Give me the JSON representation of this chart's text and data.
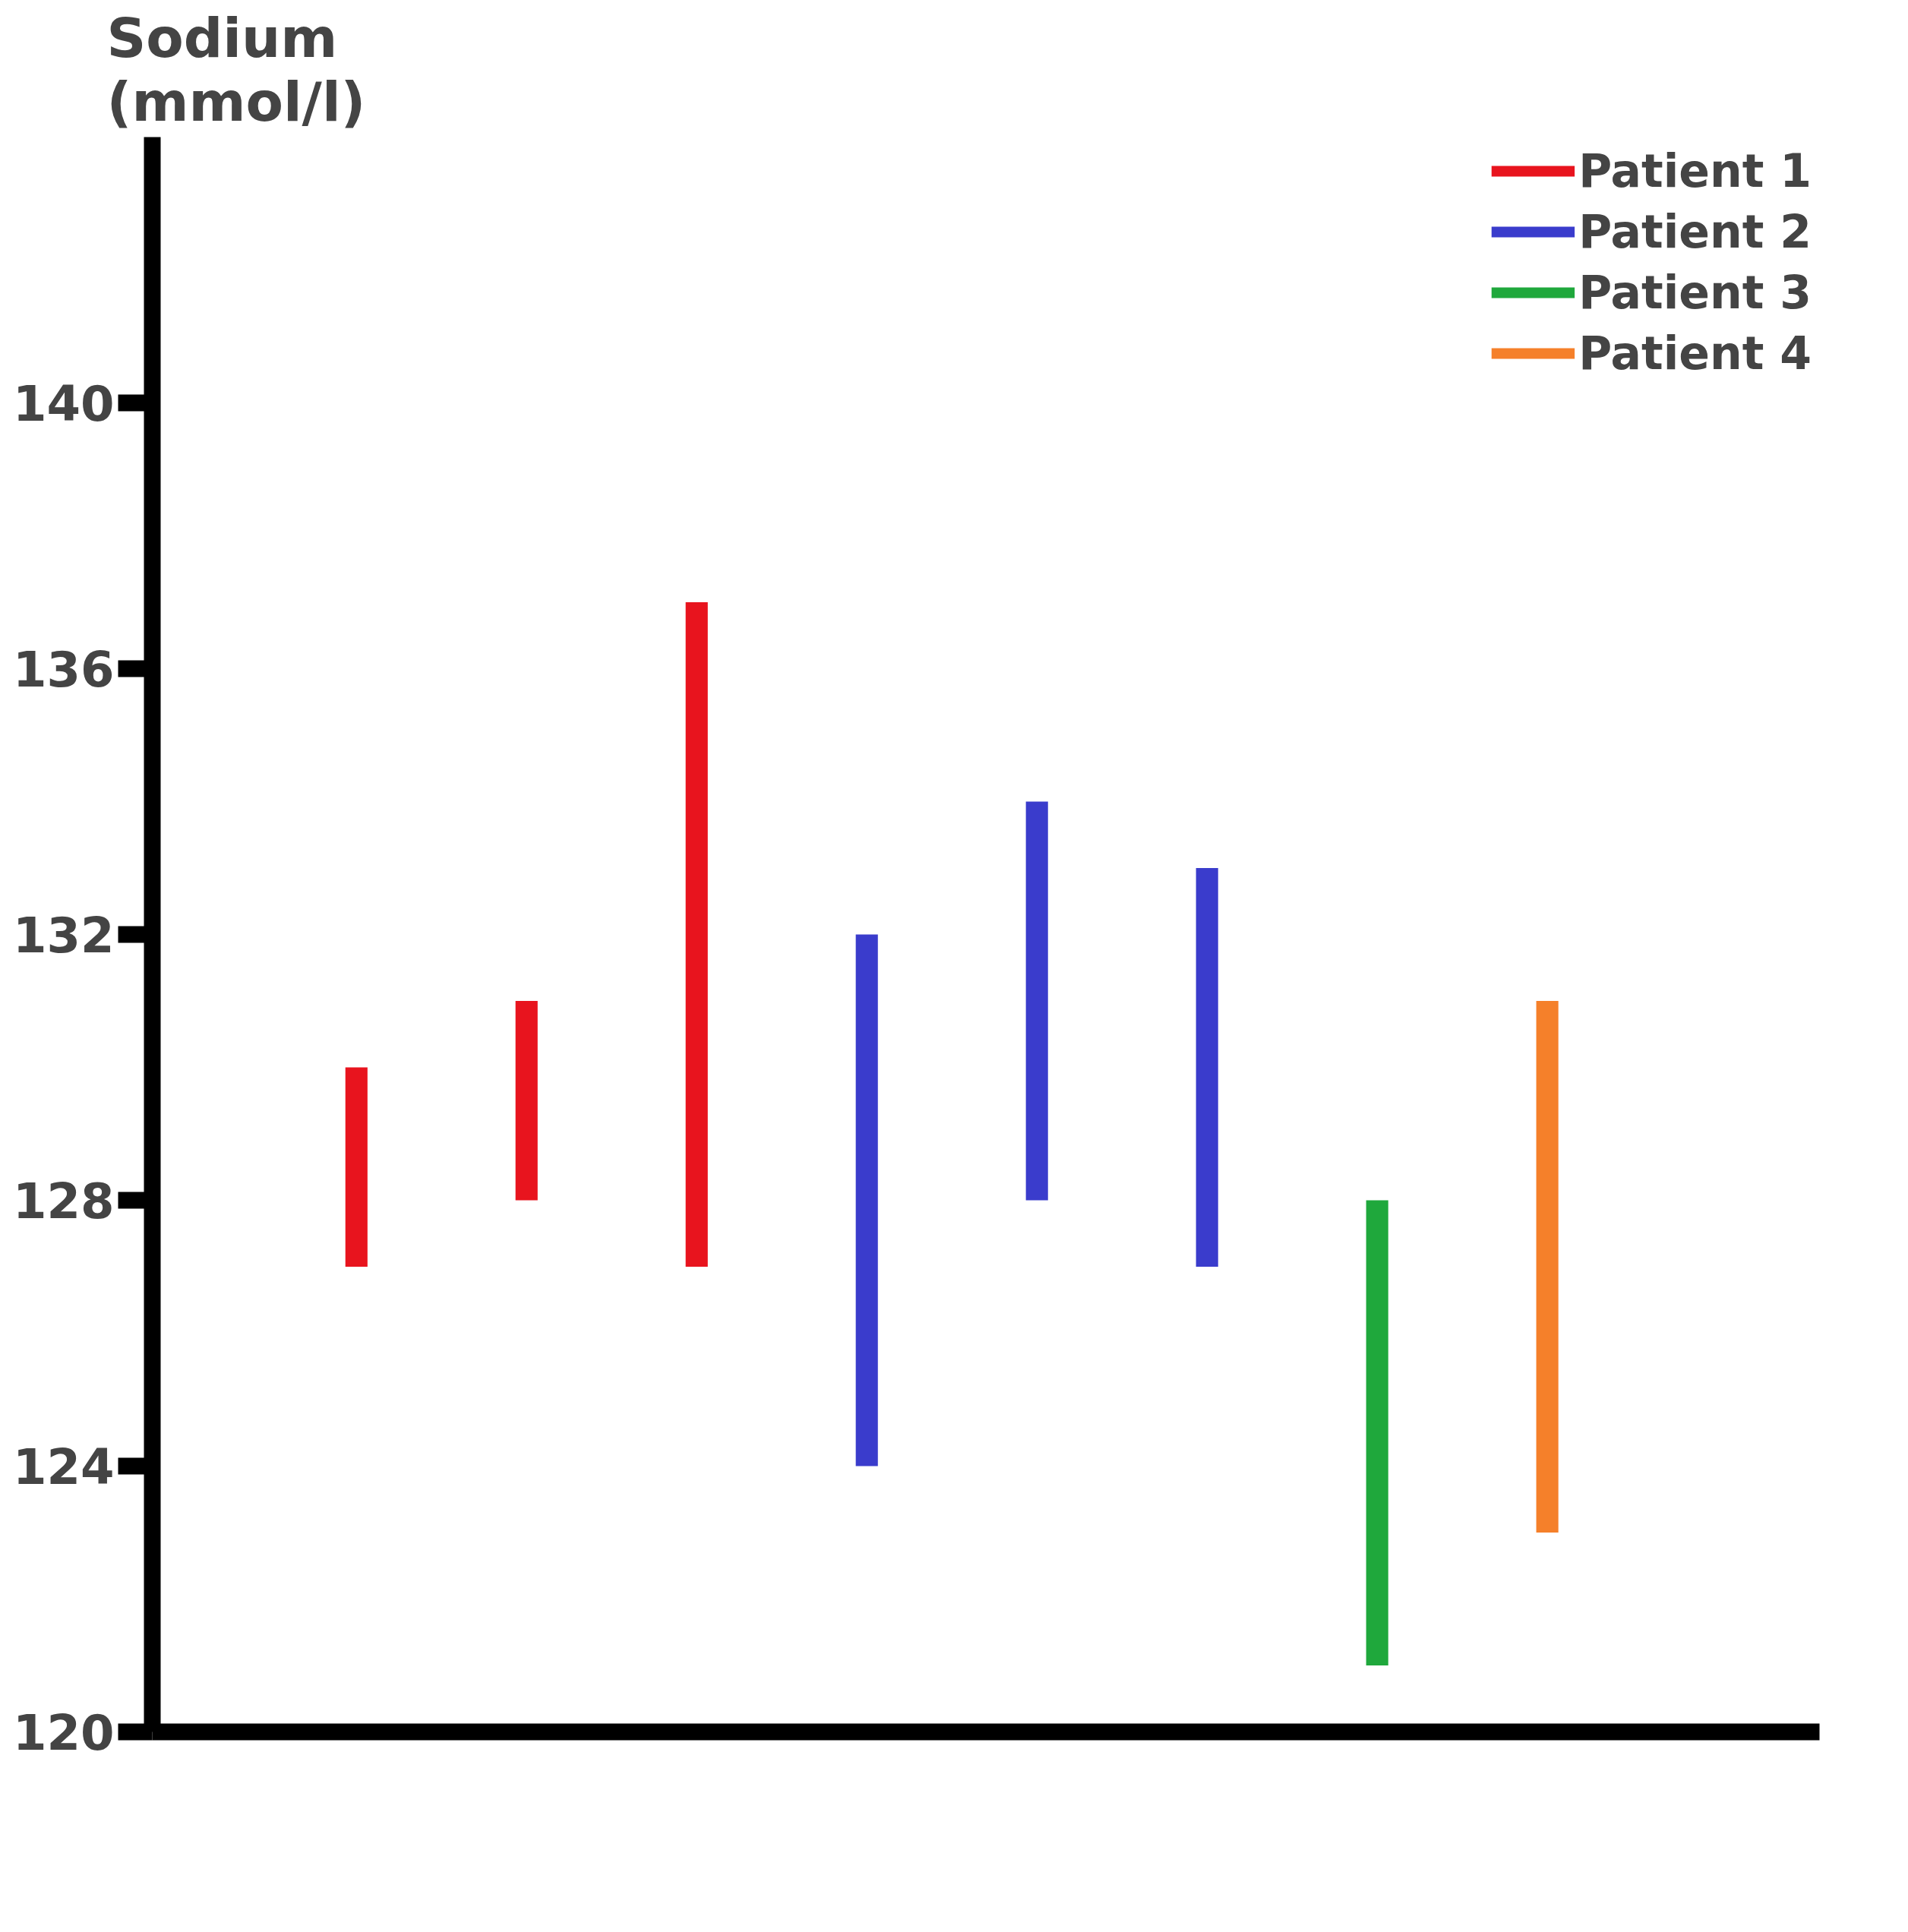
{
  "chart_data": {
    "type": "bar",
    "ylabel": "Sodium\n(mmol/l)",
    "categories": [
      null,
      null,
      null,
      null,
      null,
      null,
      null,
      null
    ],
    "series": [
      {
        "name": "Patient 1",
        "color": "#e8141e",
        "base": [
          127,
          128,
          127,
          null,
          null,
          null,
          null,
          null
        ],
        "values": [
          3,
          3,
          10,
          null,
          null,
          null,
          null,
          null
        ]
      },
      {
        "name": "Patient 2",
        "color": "#3a3ccc",
        "base": [
          null,
          null,
          null,
          124,
          128,
          127,
          null,
          null
        ],
        "values": [
          null,
          null,
          null,
          8,
          6,
          6,
          null,
          null
        ]
      },
      {
        "name": "Patient 3",
        "color": "#1fa83c",
        "base": [
          null,
          null,
          null,
          null,
          null,
          null,
          121,
          null
        ],
        "values": [
          null,
          null,
          null,
          null,
          null,
          null,
          7,
          null
        ]
      },
      {
        "name": "Patient 4",
        "color": "#f5802a",
        "base": [
          null,
          null,
          null,
          null,
          null,
          null,
          null,
          123
        ],
        "values": [
          null,
          null,
          null,
          null,
          null,
          null,
          null,
          8
        ]
      }
    ],
    "ylim": [
      120,
      144
    ],
    "yticks": [
      120,
      124,
      128,
      132,
      136,
      140
    ],
    "grid": false,
    "stacked": true,
    "legend": "top right",
    "tick_labels": "y"
  }
}
